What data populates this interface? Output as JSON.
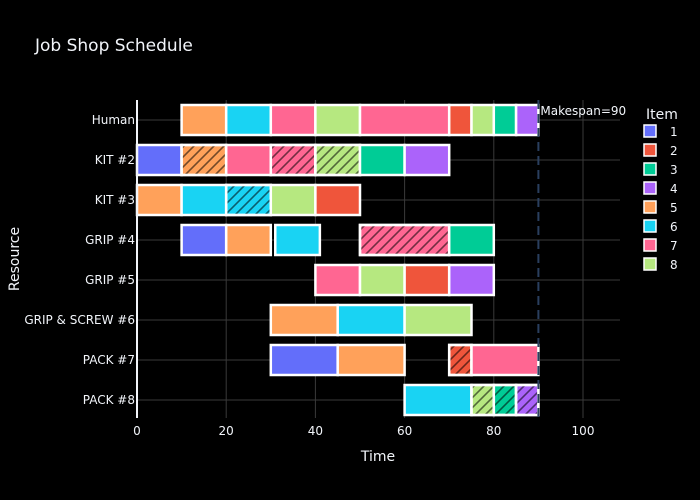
{
  "chart_data": {
    "type": "bar",
    "orientation": "horizontal",
    "title": "Job Shop Schedule",
    "xlabel": "Time",
    "ylabel": "Resource",
    "xlim": [
      0,
      108
    ],
    "xticks": [
      0,
      20,
      40,
      60,
      80,
      100
    ],
    "grid": true,
    "legend_title": "Item",
    "legend_position": "right",
    "resources": [
      "Human",
      "KIT #2",
      "KIT #3",
      "GRIP #4",
      "GRIP #5",
      "GRIP & SCREW #6",
      "PACK #7",
      "PACK #8"
    ],
    "items": [
      {
        "id": "1",
        "color": "#636efa"
      },
      {
        "id": "2",
        "color": "#ef553b"
      },
      {
        "id": "3",
        "color": "#00cc96"
      },
      {
        "id": "4",
        "color": "#ab63fa"
      },
      {
        "id": "5",
        "color": "#ffa15a"
      },
      {
        "id": "6",
        "color": "#19d3f3"
      },
      {
        "id": "7",
        "color": "#ff6692"
      },
      {
        "id": "8",
        "color": "#b6e880"
      }
    ],
    "tasks": [
      {
        "resource": "Human",
        "item": "5",
        "start": 10,
        "end": 20,
        "hatched": false
      },
      {
        "resource": "Human",
        "item": "6",
        "start": 20,
        "end": 30,
        "hatched": false
      },
      {
        "resource": "Human",
        "item": "7",
        "start": 30,
        "end": 40,
        "hatched": false
      },
      {
        "resource": "Human",
        "item": "8",
        "start": 40,
        "end": 50,
        "hatched": false
      },
      {
        "resource": "Human",
        "item": "7",
        "start": 50,
        "end": 70,
        "hatched": false
      },
      {
        "resource": "Human",
        "item": "2",
        "start": 70,
        "end": 75,
        "hatched": false
      },
      {
        "resource": "Human",
        "item": "8",
        "start": 75,
        "end": 80,
        "hatched": false
      },
      {
        "resource": "Human",
        "item": "3",
        "start": 80,
        "end": 85,
        "hatched": false
      },
      {
        "resource": "Human",
        "item": "4",
        "start": 85,
        "end": 90,
        "hatched": false
      },
      {
        "resource": "KIT #2",
        "item": "1",
        "start": 0,
        "end": 10,
        "hatched": false
      },
      {
        "resource": "KIT #2",
        "item": "5",
        "start": 10,
        "end": 20,
        "hatched": true
      },
      {
        "resource": "KIT #2",
        "item": "7",
        "start": 20,
        "end": 30,
        "hatched": false
      },
      {
        "resource": "KIT #2",
        "item": "7",
        "start": 30,
        "end": 40,
        "hatched": true
      },
      {
        "resource": "KIT #2",
        "item": "8",
        "start": 40,
        "end": 50,
        "hatched": true
      },
      {
        "resource": "KIT #2",
        "item": "3",
        "start": 50,
        "end": 60,
        "hatched": false
      },
      {
        "resource": "KIT #2",
        "item": "4",
        "start": 60,
        "end": 70,
        "hatched": false
      },
      {
        "resource": "KIT #3",
        "item": "5",
        "start": 0,
        "end": 10,
        "hatched": false
      },
      {
        "resource": "KIT #3",
        "item": "6",
        "start": 10,
        "end": 20,
        "hatched": false
      },
      {
        "resource": "KIT #3",
        "item": "6",
        "start": 20,
        "end": 30,
        "hatched": true
      },
      {
        "resource": "KIT #3",
        "item": "8",
        "start": 30,
        "end": 40,
        "hatched": false
      },
      {
        "resource": "KIT #3",
        "item": "2",
        "start": 40,
        "end": 50,
        "hatched": false
      },
      {
        "resource": "GRIP #4",
        "item": "1",
        "start": 10,
        "end": 20,
        "hatched": false
      },
      {
        "resource": "GRIP #4",
        "item": "5",
        "start": 20,
        "end": 30,
        "hatched": false
      },
      {
        "resource": "GRIP #4",
        "item": "6",
        "start": 31,
        "end": 41,
        "hatched": false
      },
      {
        "resource": "GRIP #4",
        "item": "7",
        "start": 50,
        "end": 70,
        "hatched": true
      },
      {
        "resource": "GRIP #4",
        "item": "3",
        "start": 70,
        "end": 80,
        "hatched": false
      },
      {
        "resource": "GRIP #5",
        "item": "7",
        "start": 40,
        "end": 50,
        "hatched": false
      },
      {
        "resource": "GRIP #5",
        "item": "8",
        "start": 50,
        "end": 60,
        "hatched": false
      },
      {
        "resource": "GRIP #5",
        "item": "2",
        "start": 60,
        "end": 70,
        "hatched": false
      },
      {
        "resource": "GRIP #5",
        "item": "4",
        "start": 70,
        "end": 80,
        "hatched": false
      },
      {
        "resource": "GRIP & SCREW #6",
        "item": "5",
        "start": 30,
        "end": 45,
        "hatched": false
      },
      {
        "resource": "GRIP & SCREW #6",
        "item": "6",
        "start": 45,
        "end": 60,
        "hatched": false
      },
      {
        "resource": "GRIP & SCREW #6",
        "item": "8",
        "start": 60,
        "end": 75,
        "hatched": false
      },
      {
        "resource": "PACK #7",
        "item": "1",
        "start": 30,
        "end": 45,
        "hatched": false
      },
      {
        "resource": "PACK #7",
        "item": "5",
        "start": 45,
        "end": 60,
        "hatched": false
      },
      {
        "resource": "PACK #7",
        "item": "2",
        "start": 70,
        "end": 75,
        "hatched": true
      },
      {
        "resource": "PACK #7",
        "item": "7",
        "start": 75,
        "end": 90,
        "hatched": false
      },
      {
        "resource": "PACK #8",
        "item": "6",
        "start": 60,
        "end": 75,
        "hatched": false
      },
      {
        "resource": "PACK #8",
        "item": "8",
        "start": 75,
        "end": 80,
        "hatched": true
      },
      {
        "resource": "PACK #8",
        "item": "3",
        "start": 80,
        "end": 85,
        "hatched": true
      },
      {
        "resource": "PACK #8",
        "item": "4",
        "start": 85,
        "end": 90,
        "hatched": true
      }
    ],
    "makespan": {
      "value": 90,
      "label": "Makespan=90"
    }
  }
}
